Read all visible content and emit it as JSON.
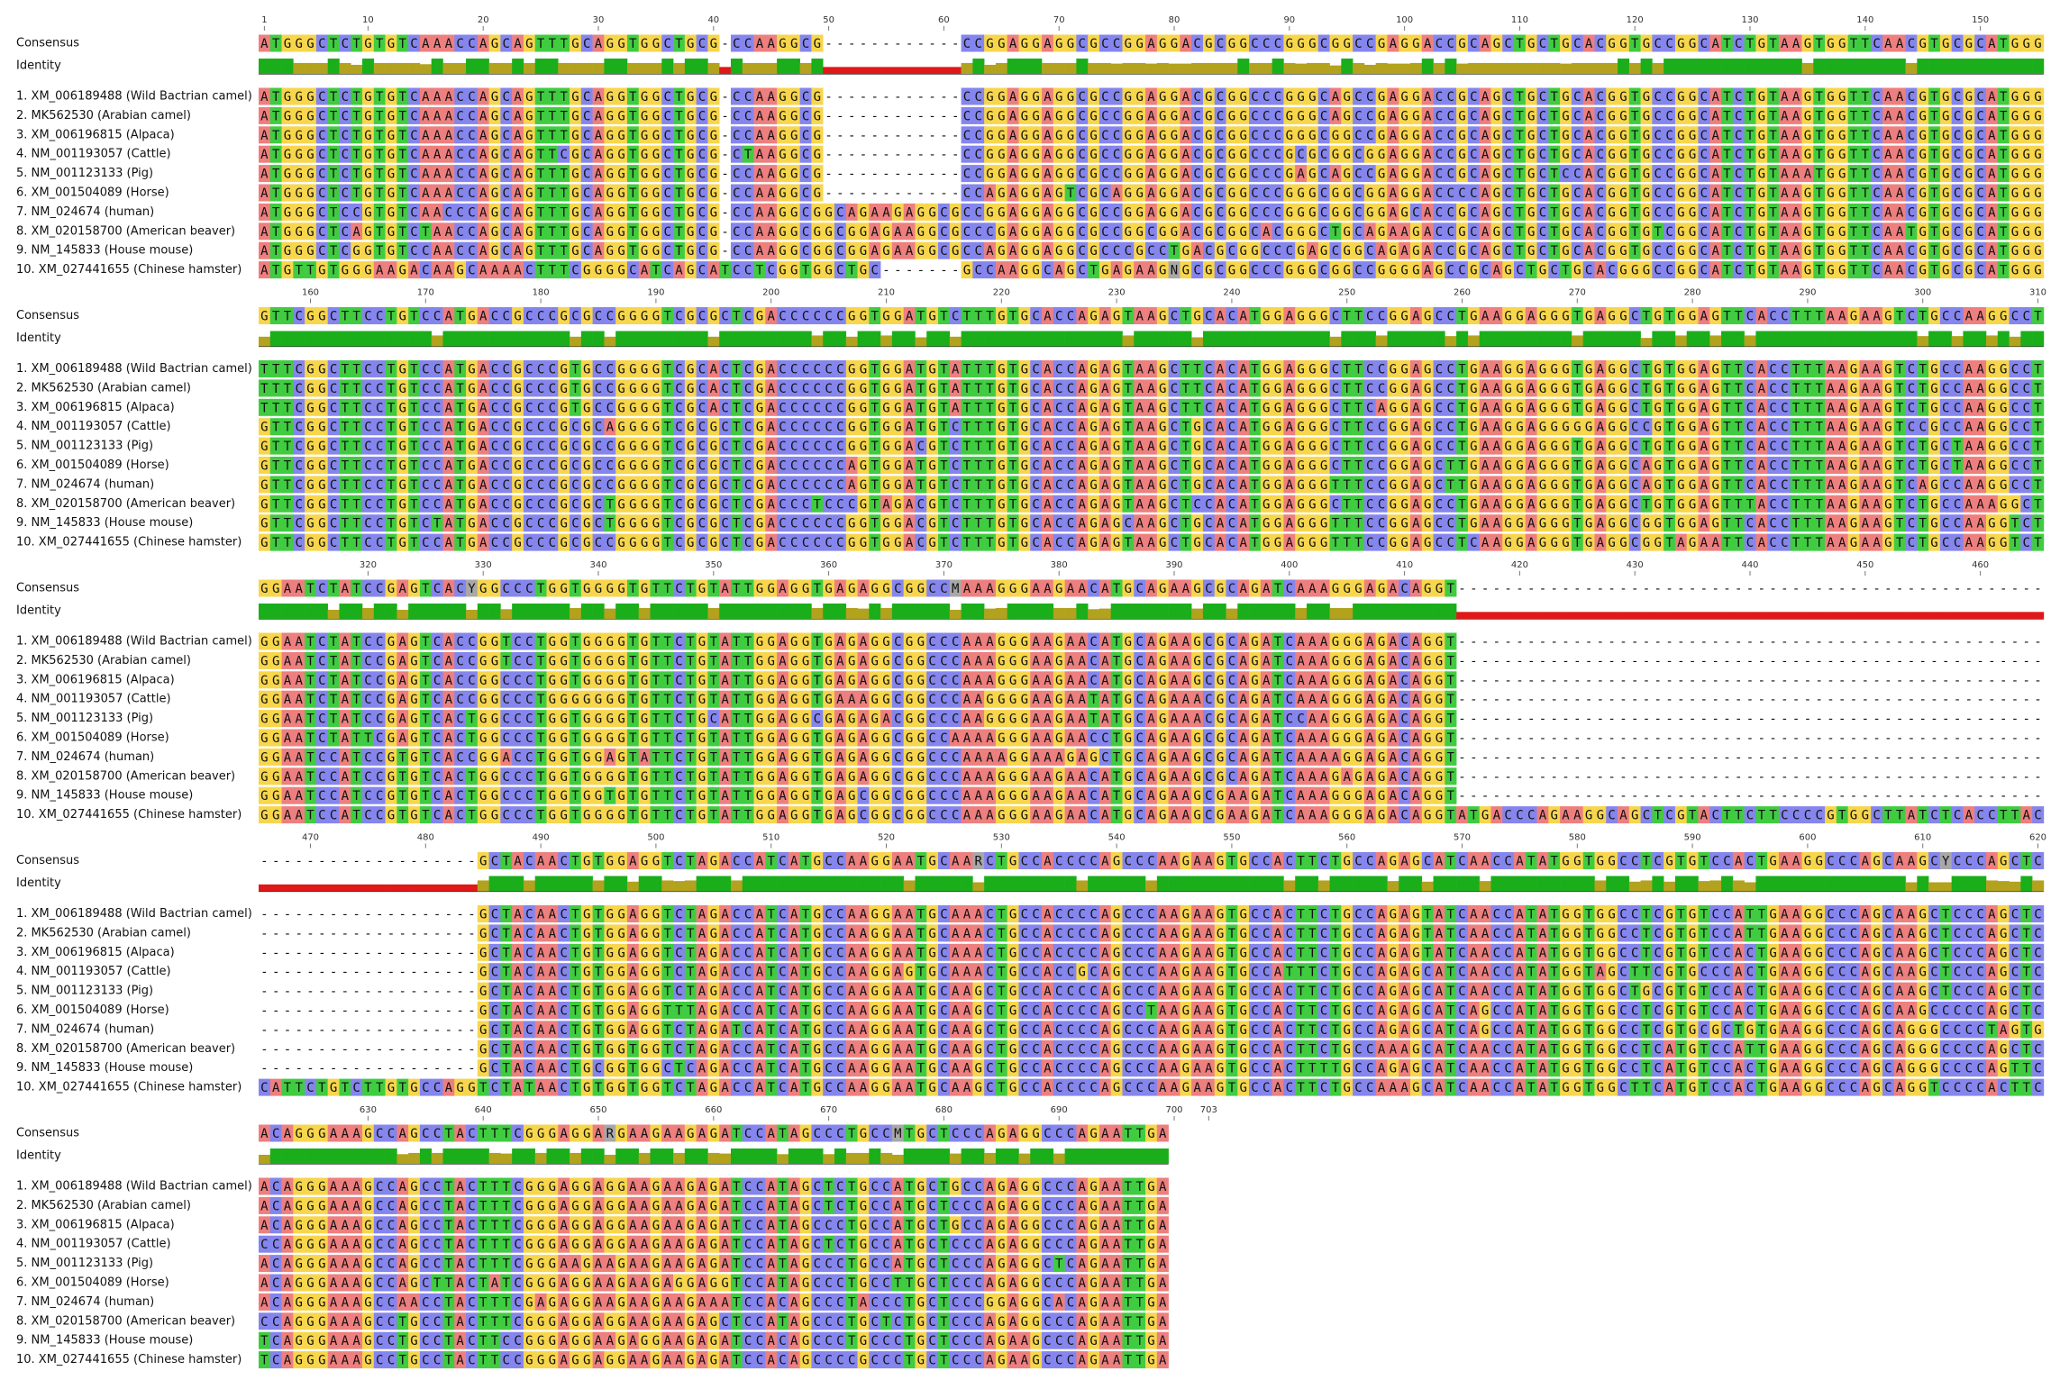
{
  "consensus_label": "Consensus",
  "identity_label": "Identity",
  "base_colors": {
    "A": "#ee7f7f",
    "C": "#8585ee",
    "G": "#f7d64c",
    "T": "#40cc40",
    "other": "#a8a8a8"
  },
  "identity_colors": {
    "full": "#1aae1a",
    "partial": "#b2a21e",
    "low": "#e01818"
  },
  "sequence_labels": [
    "1. XM_006189488 (Wild Bactrian camel)",
    "2. MK562530 (Arabian camel)",
    "3. XM_006196815 (Alpaca)",
    "4. NM_001193057 (Cattle)",
    "5. NM_001123133 (Pig)",
    "6. XM_001504089 (Horse)",
    "7. NM_024674 (human)",
    "8. XM_020158700 (American beaver)",
    "9. NM_145833 (House mouse)",
    "10. XM_027441655 (Chinese hamster)"
  ],
  "blocks": [
    {
      "ruler": [
        1,
        10,
        20,
        30,
        40,
        50,
        60,
        70,
        80,
        90,
        100,
        110,
        120,
        130,
        140,
        150
      ],
      "consensus": "ATGGGCTCTGTGTCAAACCAGCAGTTTGCAGGTGGCTGCG-CCAAGGCG------------CCGGAGGAGGCGCCGGAGGACGCGGCCCGGGCGGCCGAGGACCGCAGCTGCTGCACGGTGCCGGCATCTGTAAGTGGTTCAACGTGCGCATGGG",
      "rows": [
        "ATGGGCTCTGTGTCAAACCAGCAGTTTGCAGGTGGCTGCG-CCAAGGCG------------CCGGAGGAGGCGCCGGAGGACGCGGCCCGGGCAGCCGAGGACCGCAGCTGCTGCACGGTGCCGGCATCTGTAAGTGGTTCAACGTGCGCATGGG",
        "ATGGGCTCTGTGTCAAACCAGCAGTTTGCAGGTGGCTGCG-CCAAGGCG------------CCGGAGGAGGCGCCGGAGGACGCGGCCCGGGCAGCCGAGGACCGCAGCTGCTGCACGGTGCCGGCATCTGTAAGTGGTTCAACGTGCGCATGGG",
        "ATGGGCTCTGTGTCAAACCAGCAGTTTGCAGGTGGCTGCG-CCAAGGCG------------CCGGAGGAGGCGCCGGAGGACGCGGCCCGGGCGGCCGAGGACCGCAGCTGCTGCACGGTGCCGGCATCTGTAAGTGGTTCAACGTGCGCATGGG",
        "ATGGGCTCTGTGTCAAACCAGCAGTTCGCAGGTGGCTGCG-CTAAGGCG------------CCGGAGGAGGCGCCGGAGGACGCGGCCCGCGCGGCGGAGGACCGCAGCTGCTGCACGGTGCCGGCATCTGTAAGTGGTTCAACGTGCGCATGGG",
        "ATGGGCTCTGTGTCAAACCAGCAGTTTGCAGGTGGCTGCG-CCAAGGCG------------CCGGAGGAGGCGCCGGAGGACGCGGCCCGAGCAGCCGAGGACCGCAGCTGCTCCACGGTGCCGGCATCTGTAAATGGTTCAACGTGCGCATGGG",
        "ATGGGCTCTGTGTCAAACCAGCAGTTTGCAGGTGGCTGCG-CCAAGGCG------------CCAGAGGAGTCGCAGGAGGACGCGGCCCGGGCGGCGGAGGACCCCAGCTGCTGCACGGTGCCGGCATCTGTAAGTGGTTCAACGTGCGCATGGG",
        "ATGGGCTCCGTGTCAACCCAGCAGTTTGCAGGTGGCTGCG-CCAAGGCGGCAGAAGAGGCGCCGGAGGAGGCGCCGGAGGACGCGGCCCGGGCGGCGGAGCACCGCAGCTGCTGCACGGTGCCGGCATCTGTAAGTGGTTCAACGTGCGCATGGG",
        "ATGGGCTCAGTGTCTAACCAGCAGTTTGCAGGTGGCTGCG-CCAAGGCGGCGGAGAAGGCGCCCGAGGAGGCGCCGGCGGACGCGGCACGGGCTGCAGAAGACCGCAGCTGCTGCACGGTGTCGGCATCTGTAAGTGGTTCAATGTGCGCATGGG",
        "ATGGGCTCGGTGTCCAACCAGCAGTTTGCAGGTGGCTGCG-CCAAGGCGGCGGAGAAGGCGCCAGAGGAGGCGCCCGCCTGACGCGGCCCGAGCGGCAGAGACCGCAGCTGCTGCACGGTGCCGGCATCTGTAAGTGGTTCAACGTGCGCATGGG",
        "ATGTTGTGGGAAGACAAGCAAAACTTTCGGGGCATCAGCATCCTCGGTGGCTGC-------GCCAAGGCAGCTGAGAAGNGCGCGGCCCGGGCGGCCGGGGAGCCGCAGCTGCTGCACGGGCCGGCATCTGTAAGTGGTTCAACGTGCGCATGGG"
      ]
    },
    {
      "ruler": [
        160,
        170,
        180,
        190,
        200,
        210,
        220,
        230,
        240,
        250,
        260,
        270,
        280,
        290,
        300,
        310
      ],
      "consensus": "GTTCGGCTTCCTGTCCATGACCGCCCGCGCCGGGGTCGCGCTCGACCCCCCGGTGGATGTCTTTGTGCACCAGAGTAAGCTGCACATGGAGGGCTTCCGGAGCCTGAAGGAGGGTGAGGCTGTGGAGTTCACCTTTAAGAAGTCTGCCAAGGCCT",
      "rows": [
        "TTTCGGCTTCCTGTCCATGACCGCCCGTGCCGGGGTCGCACTCGACCCCCCGGTGGATGTATTTGTGCACCAGAGTAAGCTTCACATGGAGGGCTTCCGGAGCCTGAAGGAGGGTGAGGCTGTGGAGTTCACCTTTAAGAAGTCTGCCAAGGCCT",
        "TTTCGGCTTCCTGTCCATGACCGCCCGTGCCGGGGTCGCACTCGACCCCCCGGTGGATGTATTTGTGCACCAGAGTAAGCTTCACATGGAGGGCTTCCGGAGCCTGAAGGAGGGTGAGGCTGTGGAGTTCACCTTTAAGAAGTCTGCCAAGGCCT",
        "TTTCGGCTTCCTGTCCATGACCGCCCGTGCCGGGGTCGCACTCGACCCCCCGGTGGATGTATTTGTGCACCAGAGTAAGCTTCACATGGAGGGCTTCAGGAGCCTGAAGGAGGGTGAGGCTGTGGAGTTCACCTTTAAGAAGTCTGCCAAGGCCT",
        "GTTCGGCTTCCTGTCCATGACCGCCCGCGCAGGGGTCGCGCTCGACCCCCCGGTGGATGTCTTTGTGCACCAGAGTAAGCTGCACATGGAGGGCTTCCGGAGCCTGAAGGAGGGGGAGGCCGTGGAGTTCACCTTTAAGAAGTCCGCCAAGGCCT",
        "GTTCGGCTTCCTGTCCATGACCGCCCGCGCCGGGGTCGCGCTCGACCCCCCGGTGGACGTCTTTGTGCACCAGAGTAAGCTGCACATGGAGGGCTTCCGGAGCCTGAAGGAGGGTGAGGCTGTGGAGTTCACCTTTAAGAAGTCTGCTAAGGCCT",
        "GTTCGGCTTCCTGTCCATGACCGCCCGCGCCGGGGTCGCGCTCGACCCCCCAGTGGATGTCTTTGTGCACCAGAGTAAGCTGCACATGGAGGGCTTCCGGAGCTTGAAGGAGGGTGAGGCAGTGGAGTTCACCTTTAAGAAGTCTGCTAAGGCCT",
        "GTTCGGCTTCCTGTCCATGACCGCCCGCGCCGGGGTCGCGCTCGACCCCCCAGTGGATGTCTTTGTGCACCAGAGTAAGCTGCACATGGAGGGTTTCCGGAGCTTGAAGGAGGGTGAGGCAGTGGAGTTCACCTTTAAGAAGTCAGCCAAGGCCT",
        "GTTCGGCTTCCTGTCCATGACCGCCCGCGCTGGGGTCGCGCTCGACCCTCCCGTAGACGTCTTTGTGCACCAGAGTAAGCTCCACATGGAGGGCTTCCGGAGCCTGAAGGAGGGTGAGGCTGTGGAGTTTACCTTTAAGAAGTCTGCCAAAGGCT",
        "GTTCGGCTTCCTGTCTATGACCGCCCGCGCTGGGGTCGCGCTCGACCCCCCGGTGGACGTCTTTGTGCACCAGAGCAAGCTGCACATGGAGGGTTTCCGGAGCCTGAAGGAGGGTGAGGCGGTGGAGTTCACCTTTAAGAAGTCTGCCAAGGTCT",
        "GTTCGGCTTCCTGTCCATGACCGCCCGCGCCGGGGTCGCGCTCGACCCCCCGGTGGACGTCTTTGTGCACCAGAGTAAGCTGCACATGGAGGGTTTCCGGAGCCTCAAGGAGGGTGAGGCGGTAGAATTCACCTTTAAGAAGTCTGCCAAGGTCT"
      ]
    },
    {
      "ruler": [
        320,
        330,
        340,
        350,
        360,
        370,
        380,
        390,
        400,
        410,
        420,
        430,
        440,
        450,
        460
      ],
      "consensus": "GGAATCTATCCGAGTCACYGGCCCTGGTGGGGTGTTCTGTATTGGAGGTGAGAGGCGGCCMAAAGGGAAGAACATGCAGAAGCGCAGATCAAAGGGAGACAGGT---------------------------------------------------",
      "rows": [
        "GGAATCTATCCGAGTCACCGGTCCTGGTGGGGTGTTCTGTATTGGAGGTGAGAGGCGGCCCAAAGGGAAGAACATGCAGAAGCGCAGATCAAAGGGAGACAGGT---------------------------------------------------",
        "GGAATCTATCCGAGTCACCGGTCCTGGTGGGGTGTTCTGTATTGGAGGTGAGAGGCGGCCCAAAGGGAAGAACATGCAGAAGCGCAGATCAAAGGGAGACAGGT---------------------------------------------------",
        "GGAATCTATCCGAGTCACCGGCCCTGGTGGGGTGTTCTGTATTGGAGGTGAGAGGCGGCCCAAAGGGAAGAACATGCAGAAGCGCAGATCAAAGGGAGACAGGT---------------------------------------------------",
        "GGAATCTATCCGAGTCACCGGCCCTGGGGGGGTGTTCTGTATTGGAGGTGAAAGGCGGCCCAAGGGGAAGAATATGCAGAAACGCAGATCAAAGGGAGACAGGT---------------------------------------------------",
        "GGAATCTATCCGAGTCACTGGCCCTGGTGGGGTGTTCTGCATTGGAGGCGAGAGACGGCCCAAGGGGAAGAATATGCAGAAACGCAGATCCAAGGGAGACAGGT---------------------------------------------------",
        "GGAATCTATTCGAGTCACTGGCCCTGGTGGGGTGTTCTGTATTGGAGGTGAGAGGCGGCCAAAAGGGAAGAACCTGCAGAAGCGCAGATCAAAGGGAGACAGGT---------------------------------------------------",
        "GGAATCCATCCGTGTCACCGGACCTGGTGGAGTATTCTGTATTGGAGGTGAGAGGCGGCCCAAAAGGAAAGAGCTGCAGAAGCGCAGATCAAAAGGAGACAGGT---------------------------------------------------",
        "GGAATCCATCCGTGTCACTGGCCCTGGTGGGGTGTTCTGTATTGGAGGTGAGAGGCGGCCCAAAGGGAAGAACATGCAGAAGCGCAGATCAAAGAGAGACAGGT---------------------------------------------------",
        "GGAATCCATCCGTGTCACTGGCCCTGGTGGTGTGTTCTGTATTGGAGGTGAGCGGCGGCCCAAAGGGAAGAACATGCAGAAGCGAAGATCAAAGGGAGACAGGT---------------------------------------------------",
        "GGAATCCATCCGTGTCACTGGCCCTGGTGGGGTGTTCTGTATTGGAGGTGAGCGGCGGCCCAAAGGGAAGAACATGCAGAAGCGAAGATCAAAGGGAGACAGGTATGACCCAGAAGGCAGCTCGTACTTCTTCCCCGTGGCTTATCTCACCTTAC"
      ]
    },
    {
      "ruler": [
        470,
        480,
        490,
        500,
        510,
        520,
        530,
        540,
        550,
        560,
        570,
        580,
        590,
        600,
        610,
        620
      ],
      "consensus": "-------------------GCTACAACTGTGGAGGTCTAGACCATCATGCCAAGGAATGCAARCTGCCACCCCAGCCCAAGAAGTGCCACTTCTGCCAGAGCATCAACCATATGGTGGCCTCGTGTCCACTGAAGGCCCAGCAAGCYCCCAGCTC",
      "rows": [
        "-------------------GCTACAACTGTGGAGGTCTAGACCATCATGCCAAGGAATGCAAACTGCCACCCCAGCCCAAGAAGTGCCACTTCTGCCAGAGTATCAACCATATGGTGGCCTCGTGTCCATTGAAGGCCCAGCAAGCTCCCAGCTC",
        "-------------------GCTACAACTGTGGAGGTCTAGACCATCATGCCAAGGAATGCAAACTGCCACCCCAGCCCAAGAAGTGCCACTTCTGCCAGAGTATCAACCATATGGTGGCCTCGTGTCCATTGAAGGCCCAGCAAGCTCCCAGCTC",
        "-------------------GCTACAACTGTGGAGGTCTAGACCATCATGCCAAGGAATGCAAACTGCCACCCCAGCCCAAGAAGTGCCACTTCTGCCAGAGTATCAACCATATGGTGGCCTCGTGTCCACTGAAGGCCCAGCAAGCTCCCAGCTC",
        "-------------------GCTACAACTGTGGAGGTCTAGACCATCATGCCAAGGAGTGCAAACTGCCACCGCAGCCCAAGAAGTGCCATTTCTGCCAGAGCATCAACCATATGGTAGCTTCGTGCCCACTGAAGGCCCAGCAAGCTCCCAGCTC",
        "-------------------GCTACAACTGTGGAGGTCTAGACCATCATGCCAAGGAATGCAAGCTGCCACCCCAGCCCAAGAAGTGCCACTTCTGCCAGAGCATCAACCATATGGTGGCTGCGTGTCCACTGAAGGCCCAGCAAGCTCCCAGCTC",
        "-------------------GCTACAACTGTGGAGGTTTAGACCATCATGCCAAGGAATGCAAGCTGCCACCCCAGCCTAAGAAGTGCCACTTCTGCCAGAGCATCAGCCATATGGTGGCCTCGTGTCCACTGAAGGCCCAGCAAGCCCCCAGCTC",
        "-------------------GCTACAACTGTGGAGGTCTAGATCATCATGCCAAGGAATGCAAGCTGCCACCCCAGCCCAAGAAGTGCCACTTCTGCCAGAGCATCAGCCATATGGTGGCCTCGTGCGCTGTGAAGGCCCAGCAGGGCCCCTAGTG",
        "-------------------GCTACAACTGTGGTGGTCTAGACCATCATGCCAAGGAATGCAAGCTGCCACCCCAGCCCAAGAAGTGCCACTTCTGCCAAAGCATCAACCATATGGTGGCCTCATGTCCATTGAAGGCCCAGCAGGGCCCCAGCTC",
        "-------------------GCTACAACTGCGGTGGCTCAGACCATCATGCCAAGGAATGCAAGCTGCCACCCCAGCCCAAGAAGTGCCACTTTTGCCAGAGCATCAACCATATGGTGGCCTCATGTCCACTGAAGGCCCAGCAGGGCCCCAGTTC",
        "CATTCTGTCTTGTGCCAGGTCTATAACTGTGGTGGTCTAGACCATCATGCCAAGGAATGCAAGCTGCCACCCCAGCCCAAGAAGTGCCACTTCTGCCAAAGCATCAACCATATGGTGGCTTCATGTCCACTGAAGGCCCAGCAGGTCCCCACTTC"
      ]
    },
    {
      "ruler": [
        630,
        640,
        650,
        660,
        670,
        680,
        690,
        700,
        703
      ],
      "consensus": "ACAGGGAAAGCCAGCCTACTTTCGGGAGGARGAAGAAGAGATCCATAGCCCTGCCMTGCTCCCAGAGGCCCAGAATTGA",
      "rows": [
        "ACAGGGAAAGCCAGCCTACTTTCGGGAGGAGGAAGAAGAGATCCATAGCTCTGCCATGCTGCCAGAGGCCCAGAATTGA",
        "ACAGGGAAAGCCAGCCTACTTTCGGGAGGAGGAAGAAGAGATCCATAGCTCTGCCATGCTCCCAGAGGCCCAGAATTGA",
        "ACAGGGAAAGCCAGCCTACTTTCGGGAGGAGGAAGAAGAGATCCATAGCCCTGCCATGCTGCCAGAGGCCCAGAATTGA",
        "CCAGGGAAAGCCAGCCTACTTTCGGGAGGAGGAAGAAGAGATCCATAGCTCTGCCATGCTCCCAGAGGCCCAGAATTGA",
        "ACAGGGAAAGCCAGCCTACTTTCGGGAAGAAGAAGAAGAGATCCATAGCCCTGCCATGCTCCCAGAGGCTCAGAATTGA",
        "ACAGGGAAAGCCAGCTTACTATCGGGAGGAAGAAGAGGAGGTCCATAGCCCTGCCTTGCTCCCAGAGGCCCAGAATTGA",
        "ACAGGGAAAGCCAACCTACTTTCGAGAGGAAGAAGAAGAAATCCACAGCCCTACCCTGCTCCCGGAGGCACAGAATTGA",
        "CCAGGGAAAGCCTGCCTACTTTCGGGAGGAGGAAGAAGAGCTCCATAGCCCTGCTCTGCTCCCAGAGGCCCAGAATTGA",
        "TCAGGGAAAGCCTGCCTACTTCCGGGAGGAAGAGGAAGAGATCCACAGCCCTGCCCTGCTCCCAGAAGCCCAGAATTGA",
        "TCAGGGAAAGCCTGCCTACTTCCGGGAGGAGGAAGAAGAGATCCACAGCCCCGCCCTGCTCCCAGAAGCCCAGAATTGA"
      ]
    }
  ]
}
